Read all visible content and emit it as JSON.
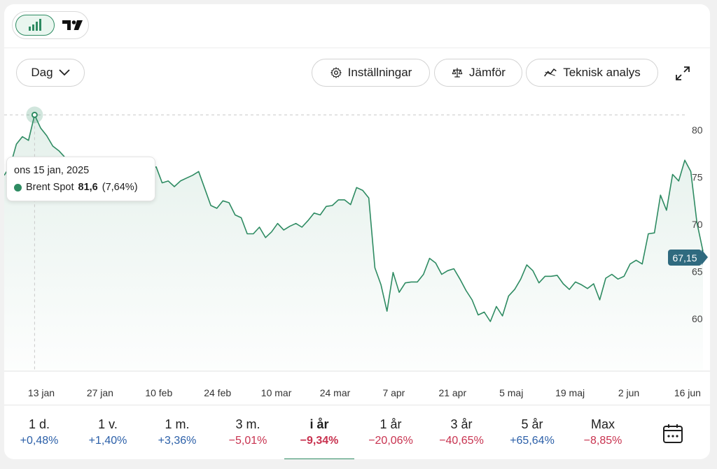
{
  "toolbar": {
    "interval_label": "Dag",
    "settings_label": "Inställningar",
    "compare_label": "Jämför",
    "technical_label": "Teknisk analys"
  },
  "tooltip": {
    "date": "ons 15 jan, 2025",
    "series_name": "Brent Spot",
    "value": "81,6",
    "change": "(7,64%)"
  },
  "last_price": "67,15",
  "colors": {
    "line": "#2e8b62",
    "positive": "#2b5fa8",
    "negative": "#c8324f",
    "badge": "#2f6a7f"
  },
  "chart_data": {
    "type": "area",
    "y_ticks": [
      "80",
      "75",
      "70",
      "65",
      "60"
    ],
    "ylim": [
      55.3,
      82.5
    ],
    "x_ticks": [
      "13 jan",
      "27 jan",
      "10 feb",
      "24 feb",
      "10 mar",
      "24 mar",
      "7 apr",
      "21 apr",
      "5 maj",
      "19 maj",
      "2 jun",
      "16 jun"
    ],
    "series": [
      {
        "name": "Brent Spot",
        "values": [
          75.2,
          76.2,
          78.5,
          79.3,
          78.9,
          81.6,
          80.2,
          79.4,
          78.3,
          77.8,
          77.1,
          76.4,
          75.5,
          76.6,
          75.5,
          75.4,
          74.7,
          75.3,
          74.9,
          75.2,
          74.6,
          74.7,
          74.1,
          75.2,
          75.7,
          76.1,
          74.4,
          74.6,
          74.0,
          74.6,
          74.9,
          75.2,
          75.6,
          73.8,
          72.0,
          71.7,
          72.5,
          72.3,
          71.0,
          70.7,
          69.0,
          69.0,
          69.7,
          68.6,
          69.2,
          70.1,
          69.4,
          69.8,
          70.1,
          69.7,
          70.4,
          71.2,
          71.0,
          71.9,
          72.0,
          72.6,
          72.6,
          72.1,
          73.9,
          73.6,
          72.8,
          65.4,
          63.6,
          60.8,
          64.9,
          62.8,
          63.8,
          63.9,
          63.9,
          64.7,
          66.4,
          65.9,
          64.7,
          65.1,
          65.3,
          64.2,
          63.0,
          62.0,
          60.4,
          60.7,
          59.7,
          61.3,
          60.3,
          62.4,
          63.1,
          64.2,
          65.7,
          65.1,
          63.8,
          64.5,
          64.5,
          64.6,
          63.7,
          63.1,
          63.9,
          63.6,
          63.2,
          63.7,
          62.0,
          64.3,
          64.7,
          64.2,
          64.5,
          65.8,
          66.2,
          65.8,
          69.0,
          69.1,
          73.1,
          71.5,
          75.3,
          74.6,
          76.8,
          75.6,
          70.2,
          67.15
        ]
      }
    ]
  },
  "periods": [
    {
      "label": "1 d.",
      "change": "+0,48%",
      "trend": "up"
    },
    {
      "label": "1 v.",
      "change": "+1,40%",
      "trend": "up"
    },
    {
      "label": "1 m.",
      "change": "+3,36%",
      "trend": "up"
    },
    {
      "label": "3 m.",
      "change": "−5,01%",
      "trend": "down"
    },
    {
      "label": "i år",
      "change": "−9,34%",
      "trend": "down"
    },
    {
      "label": "1 år",
      "change": "−20,06%",
      "trend": "down"
    },
    {
      "label": "3 år",
      "change": "−40,65%",
      "trend": "down"
    },
    {
      "label": "5 år",
      "change": "+65,64%",
      "trend": "up"
    },
    {
      "label": "Max",
      "change": "−8,85%",
      "trend": "down"
    }
  ],
  "active_period_index": 4
}
